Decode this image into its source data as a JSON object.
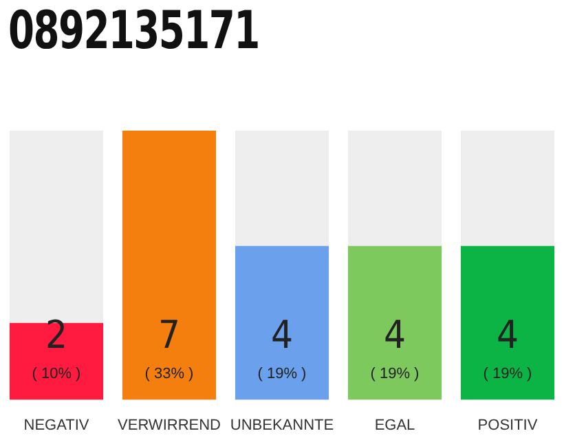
{
  "chart_data": {
    "type": "bar",
    "title": "0892135171",
    "categories": [
      "NEGATIV",
      "VERWIRREND",
      "UNBEKANNTE",
      "EGAL",
      "POSITIV"
    ],
    "values": [
      2,
      7,
      4,
      4,
      4
    ],
    "colors": [
      "#ff1a40",
      "#f57f0e",
      "#6aa0ec",
      "#7ec95e",
      "#0bb444"
    ],
    "data_labels": true,
    "grid": false,
    "legend": false,
    "annotations": [
      "( 10% )",
      "( 33% )",
      "( 19% )",
      "( 19% )",
      "( 19% )"
    ]
  }
}
